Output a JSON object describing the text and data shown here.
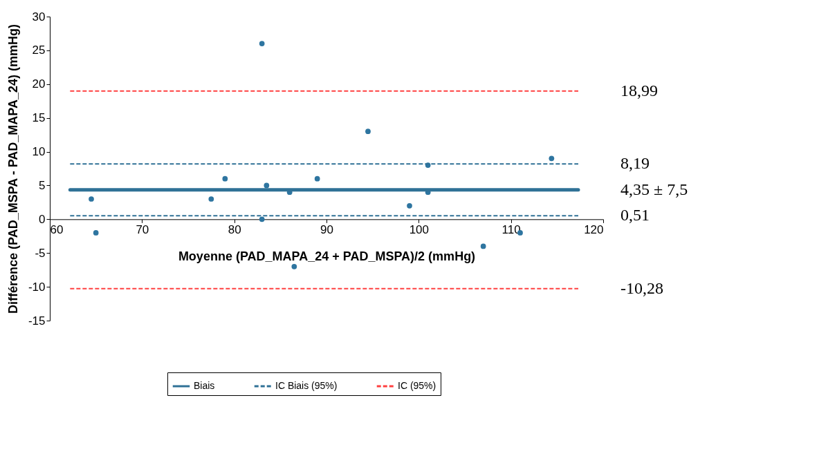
{
  "chart_data": {
    "type": "scatter",
    "xlabel": "Moyenne (PAD_MAPA_24 + PAD_MSPA)/2 (mmHg)",
    "ylabel": "Différence (PAD_MSPA - PAD_MAPA_24) (mmHg)",
    "xlim": [
      60,
      120
    ],
    "xticks": [
      60,
      70,
      80,
      90,
      100,
      110,
      120
    ],
    "ylim": [
      -15,
      30
    ],
    "yticks": [
      -15,
      -10,
      -5,
      0,
      5,
      10,
      15,
      20,
      25,
      30
    ],
    "grid": false,
    "legend": "bottom",
    "series": [
      {
        "color": "#2e75a0",
        "marker": "circle",
        "x": [
          64.5,
          65.0,
          77.5,
          79.0,
          83.0,
          83.0,
          83.5,
          86.0,
          86.5,
          89.0,
          94.5,
          99.0,
          101.0,
          101.0,
          107.0,
          111.0,
          114.4
        ],
        "values": [
          3,
          -2,
          3,
          6,
          26,
          0,
          5,
          4,
          -7,
          6,
          13,
          2,
          8,
          4,
          -4,
          -2,
          9
        ]
      },
      {
        "type": "line",
        "name": "Biais",
        "color": "#2f7196",
        "line_style": "solid",
        "x": [
          62.2,
          117.3
        ],
        "values": [
          4.35,
          4.35
        ]
      },
      {
        "type": "line",
        "name": "IC Biais (95%)",
        "color": "#2f7196",
        "line_style": "dashed",
        "x": [
          62.2,
          117.3
        ],
        "values": [
          8.19,
          8.19
        ]
      },
      {
        "type": "line",
        "color": "#2f7196",
        "line_style": "dashed",
        "x": [
          62.2,
          117.3
        ],
        "values": [
          0.51,
          0.51
        ]
      },
      {
        "type": "line",
        "name": "IC (95%)",
        "color": "#ff4040",
        "line_style": "dashed",
        "x": [
          62.2,
          117.3
        ],
        "values": [
          18.99,
          18.99
        ]
      },
      {
        "type": "line",
        "color": "#ff4040",
        "line_style": "dashed",
        "x": [
          62.2,
          117.3
        ],
        "values": [
          -10.28,
          -10.28
        ]
      }
    ],
    "annotations": [
      "18,99",
      "8,19",
      "4,35 ± 7,5",
      "0,51",
      "-10,28"
    ]
  }
}
